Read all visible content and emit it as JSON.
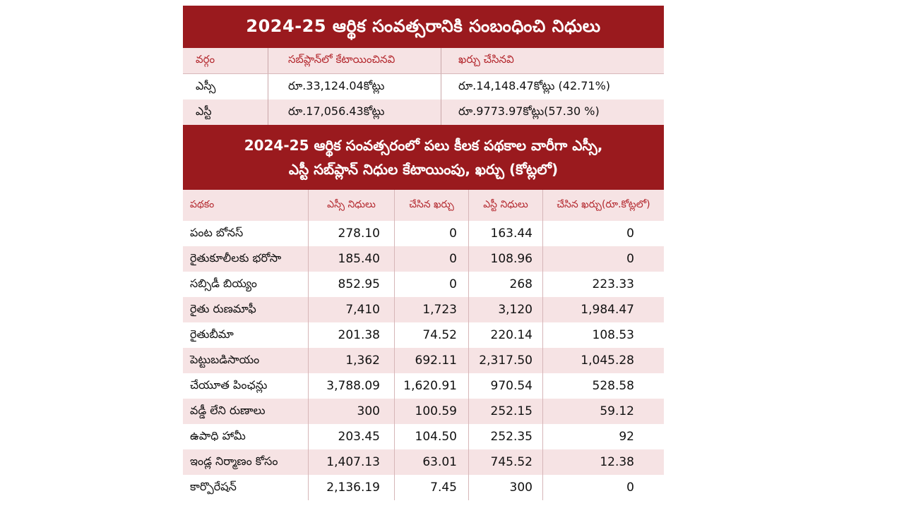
{
  "title1": "2024-25 ఆర్థిక సంవత్సరానికి సంబంధించి నిధులు",
  "table1": {
    "headers": [
      "వర్గం",
      "సబ్‌ప్లాన్‌లో కేటాయించినవి",
      "ఖర్చు చేసినవి"
    ],
    "rows": [
      [
        "ఎస్సీ",
        "రూ.33,124.04కోట్లు",
        "రూ.14,148.47కోట్లు (42.71%)"
      ],
      [
        "ఎస్టీ",
        "రూ.17,056.43కోట్లు",
        "రూ.9773.97కోట్లు(57.30 %)"
      ]
    ]
  },
  "title2_line1": "2024-25 ఆర్థిక సంవత్సరంలో పలు కీలక పథకాల వారీగా ఎస్సీ,",
  "title2_line2": "ఎస్టీ సబ్‌ప్లాన్ నిధుల కేటాయింపు, ఖర్చు (కోట్లలో)",
  "table2": {
    "headers": [
      "పథకం",
      "ఎస్సీ నిధులు",
      "చేసిన ఖర్చు",
      "ఎస్టీ నిధులు",
      "చేసిన ఖర్చు(రూ.కోట్లలో)"
    ],
    "rows": [
      [
        "పంట బోనస్",
        "278.10",
        "0",
        "163.44",
        "0"
      ],
      [
        "రైతుకూలీలకు భరోసా",
        "185.40",
        "0",
        "108.96",
        "0"
      ],
      [
        "సబ్సిడీ బియ్యం",
        "852.95",
        "0",
        "268",
        "223.33"
      ],
      [
        "రైతు రుణమాఫీ",
        "7,410",
        "1,723",
        "3,120",
        "1,984.47"
      ],
      [
        "రైతుబీమా",
        "201.38",
        "74.52",
        "220.14",
        "108.53"
      ],
      [
        "పెట్టుబడిసాయం",
        "1,362",
        "692.11",
        "2,317.50",
        "1,045.28"
      ],
      [
        "చేయూత పింఛన్లు",
        "3,788.09",
        "1,620.91",
        "970.54",
        "528.58"
      ],
      [
        "వడ్డీ లేని రుణాలు",
        "300",
        "100.59",
        "252.15",
        "59.12"
      ],
      [
        "ఉపాధి హామీ",
        "203.45",
        "104.50",
        "252.35",
        "92"
      ],
      [
        "ఇండ్ల నిర్మాణం కోసం",
        "1,407.13",
        "63.01",
        "745.52",
        "12.38"
      ],
      [
        "కార్పొరేషన్",
        "2,136.19",
        "7.45",
        "300",
        "0"
      ]
    ]
  },
  "colors": {
    "header_bg": "#9a1a1e",
    "row_pink": "#f6e3e4",
    "header_text": "#b3262c"
  }
}
